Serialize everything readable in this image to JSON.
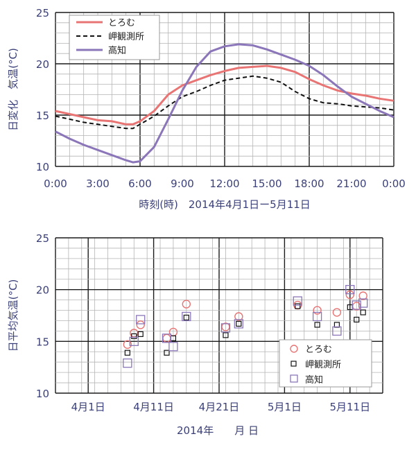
{
  "chart_data": [
    {
      "type": "line",
      "ylabel": "日変化　気温(°C)",
      "xlabel": "時刻(時)　2014年4月1日ー5月11日",
      "ylim": [
        10,
        25
      ],
      "yticks": [
        "10",
        "15",
        "20",
        "25"
      ],
      "xlim": [
        0,
        24
      ],
      "xticks": [
        "0:00",
        "3:00",
        "6:00",
        "9:00",
        "12:00",
        "15:00",
        "18:00",
        "21:00",
        "0:00"
      ],
      "grid": true,
      "legend_position": "top-left",
      "x": [
        0,
        1,
        2,
        3,
        4,
        5,
        5.5,
        6,
        7,
        8,
        9,
        10,
        11,
        12,
        13,
        14,
        15,
        16,
        17,
        18,
        19,
        20,
        21,
        22,
        23,
        24
      ],
      "series": [
        {
          "name": "とろむ",
          "color": "#e87474",
          "dash": "solid",
          "values": [
            15.4,
            15.1,
            14.8,
            14.5,
            14.4,
            14.1,
            14.1,
            14.4,
            15.4,
            17.0,
            17.9,
            18.4,
            18.9,
            19.3,
            19.6,
            19.7,
            19.8,
            19.6,
            19.2,
            18.5,
            17.9,
            17.4,
            17.1,
            16.9,
            16.6,
            16.4
          ]
        },
        {
          "name": "岬観測所",
          "color": "#111111",
          "dash": "dashed",
          "values": [
            14.9,
            14.6,
            14.3,
            14.1,
            13.9,
            13.7,
            13.7,
            14.1,
            14.9,
            15.9,
            16.8,
            17.3,
            17.9,
            18.4,
            18.6,
            18.8,
            18.6,
            18.2,
            17.3,
            16.6,
            16.2,
            16.1,
            15.9,
            15.8,
            15.7,
            15.5
          ]
        },
        {
          "name": "高知",
          "color": "#8a76b8",
          "dash": "solid",
          "values": [
            13.4,
            12.7,
            12.1,
            11.6,
            11.1,
            10.6,
            10.4,
            10.5,
            11.9,
            14.6,
            17.4,
            19.7,
            21.2,
            21.7,
            21.9,
            21.8,
            21.4,
            20.9,
            20.4,
            19.8,
            18.9,
            17.8,
            16.8,
            16.1,
            15.4,
            14.8
          ]
        }
      ]
    },
    {
      "type": "scatter",
      "ylabel": "日平均気温(°C)",
      "xlabel": "2014年　　月 日",
      "ylim": [
        10,
        25
      ],
      "yticks": [
        "10",
        "15",
        "20",
        "25"
      ],
      "xlim": [
        1,
        41
      ],
      "xticks": [
        {
          "day": 1,
          "label": "4月1日"
        },
        {
          "day": 11,
          "label": "4月11日"
        },
        {
          "day": 21,
          "label": "4月21日"
        },
        {
          "day": 31,
          "label": "5月1日"
        },
        {
          "day": 41,
          "label": "5月11日"
        }
      ],
      "grid": true,
      "legend_position": "bottom-right",
      "series": [
        {
          "name": "とろむ",
          "color": "#e87474",
          "marker": "circle",
          "points": [
            [
              7,
              14.7
            ],
            [
              8,
              15.8
            ],
            [
              9,
              16.6
            ],
            [
              13,
              15.3
            ],
            [
              14,
              15.9
            ],
            [
              16,
              18.6
            ],
            [
              22,
              16.4
            ],
            [
              24,
              17.4
            ],
            [
              33,
              18.5
            ],
            [
              36,
              18.0
            ],
            [
              39,
              17.8
            ],
            [
              41,
              19.5
            ],
            [
              42,
              18.4
            ],
            [
              43,
              19.4
            ]
          ]
        },
        {
          "name": "岬観測所",
          "color": "#111111",
          "marker": "square-small",
          "points": [
            [
              7,
              13.9
            ],
            [
              8,
              15.5
            ],
            [
              9,
              15.7
            ],
            [
              13,
              13.9
            ],
            [
              14,
              15.3
            ],
            [
              16,
              17.3
            ],
            [
              22,
              15.6
            ],
            [
              24,
              16.7
            ],
            [
              33,
              18.4
            ],
            [
              36,
              16.6
            ],
            [
              39,
              16.6
            ],
            [
              41,
              18.3
            ],
            [
              42,
              17.1
            ],
            [
              43,
              17.8
            ]
          ]
        },
        {
          "name": "高知",
          "color": "#8a76b8",
          "marker": "square-large",
          "points": [
            [
              7,
              12.9
            ],
            [
              8,
              15.0
            ],
            [
              9,
              17.1
            ],
            [
              13,
              15.3
            ],
            [
              14,
              14.5
            ],
            [
              16,
              17.4
            ],
            [
              22,
              16.3
            ],
            [
              24,
              16.7
            ],
            [
              33,
              18.9
            ],
            [
              36,
              17.4
            ],
            [
              39,
              16.0
            ],
            [
              41,
              20.0
            ],
            [
              42,
              18.5
            ],
            [
              43,
              18.7
            ]
          ]
        }
      ]
    }
  ]
}
